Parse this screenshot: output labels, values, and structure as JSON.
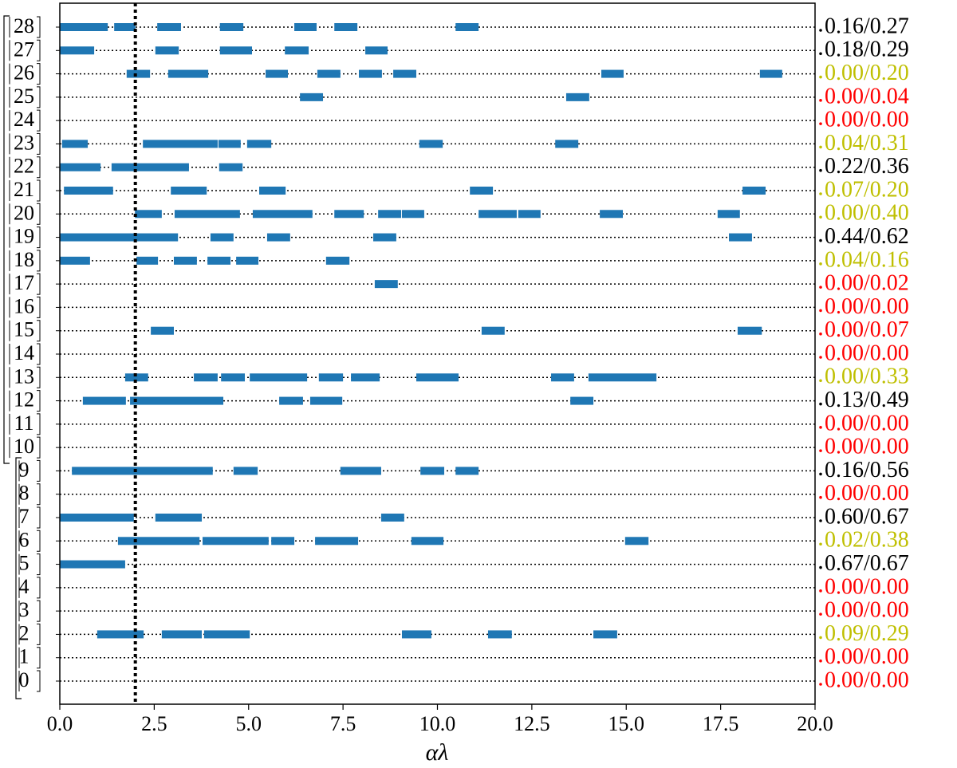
{
  "chart_data": {
    "type": "barcode",
    "xlabel": "αλ",
    "xlim": [
      0,
      20
    ],
    "xticks": [
      {
        "value": 0,
        "label": "0.0"
      },
      {
        "value": 2.5,
        "label": "2.5"
      },
      {
        "value": 5,
        "label": "5.0"
      },
      {
        "value": 7.5,
        "label": "7.5"
      },
      {
        "value": 10,
        "label": "10.0"
      },
      {
        "value": 12.5,
        "label": "12.5"
      },
      {
        "value": 15,
        "label": "15.0"
      },
      {
        "value": 17.5,
        "label": "17.5"
      },
      {
        "value": 20,
        "label": "20.0"
      }
    ],
    "vline": 2,
    "bar_color": "#1f77b4",
    "rows": [
      {
        "label": "0",
        "score": "0.00/0.00",
        "color": "#ff0000",
        "intervals": []
      },
      {
        "label": "1",
        "score": "0.00/0.00",
        "color": "#ff0000",
        "intervals": []
      },
      {
        "label": "2",
        "score": "0.09/0.29",
        "color": "#bfbf00",
        "intervals": [
          [
            0.99,
            2.22
          ],
          [
            2.7,
            3.76
          ],
          [
            3.82,
            5.03
          ],
          [
            9.06,
            9.84
          ],
          [
            11.34,
            11.97
          ],
          [
            14.13,
            14.76
          ]
        ]
      },
      {
        "label": "3",
        "score": "0.00/0.00",
        "color": "#ff0000",
        "intervals": []
      },
      {
        "label": "4",
        "score": "0.00/0.00",
        "color": "#ff0000",
        "intervals": []
      },
      {
        "label": "5",
        "score": "0.67/0.67",
        "color": "#000000",
        "intervals": [
          [
            0,
            1.73
          ]
        ]
      },
      {
        "label": "6",
        "score": "0.02/0.38",
        "color": "#bfbf00",
        "intervals": [
          [
            1.54,
            3.7
          ],
          [
            3.78,
            5.53
          ],
          [
            5.6,
            6.21
          ],
          [
            6.76,
            7.9
          ],
          [
            9.31,
            10.16
          ],
          [
            14.97,
            15.59
          ]
        ]
      },
      {
        "label": "7",
        "score": "0.60/0.67",
        "color": "#000000",
        "intervals": [
          [
            0,
            1.96
          ],
          [
            2.53,
            3.76
          ],
          [
            8.51,
            9.12
          ]
        ]
      },
      {
        "label": "8",
        "score": "0.00/0.00",
        "color": "#ff0000",
        "intervals": []
      },
      {
        "label": "9",
        "score": "0.16/0.56",
        "color": "#000000",
        "intervals": [
          [
            0.32,
            4.05
          ],
          [
            4.6,
            5.24
          ],
          [
            7.43,
            8.51
          ],
          [
            9.55,
            10.18
          ],
          [
            10.48,
            11.09
          ]
        ]
      },
      {
        "label": "10",
        "score": "0.00/0.00",
        "color": "#ff0000",
        "intervals": []
      },
      {
        "label": "11",
        "score": "0.00/0.00",
        "color": "#ff0000",
        "intervals": []
      },
      {
        "label": "12",
        "score": "0.13/0.49",
        "color": "#000000",
        "intervals": [
          [
            0.61,
            1.75
          ],
          [
            1.86,
            4.33
          ],
          [
            5.81,
            6.44
          ],
          [
            6.63,
            7.48
          ],
          [
            13.52,
            14.13
          ]
        ]
      },
      {
        "label": "13",
        "score": "0.00/0.33",
        "color": "#bfbf00",
        "intervals": [
          [
            1.73,
            2.34
          ],
          [
            3.55,
            4.18
          ],
          [
            4.27,
            4.9
          ],
          [
            5.03,
            6.55
          ],
          [
            6.86,
            7.5
          ],
          [
            7.71,
            8.47
          ],
          [
            9.44,
            10.56
          ],
          [
            13.01,
            13.62
          ],
          [
            14.0,
            15.8
          ]
        ]
      },
      {
        "label": "14",
        "score": "0.00/0.00",
        "color": "#ff0000",
        "intervals": []
      },
      {
        "label": "15",
        "score": "0.00/0.07",
        "color": "#ff0000",
        "intervals": [
          [
            2.41,
            3.02
          ],
          [
            11.17,
            11.78
          ],
          [
            17.95,
            18.59
          ]
        ]
      },
      {
        "label": "16",
        "score": "0.00/0.00",
        "color": "#ff0000",
        "intervals": []
      },
      {
        "label": "17",
        "score": "0.00/0.02",
        "color": "#ff0000",
        "intervals": [
          [
            8.34,
            8.95
          ]
        ]
      },
      {
        "label": "18",
        "score": "0.04/0.16",
        "color": "#bfbf00",
        "intervals": [
          [
            0,
            0.8
          ],
          [
            2.03,
            2.6
          ],
          [
            3.02,
            3.63
          ],
          [
            3.91,
            4.52
          ],
          [
            4.67,
            5.26
          ],
          [
            7.05,
            7.67
          ]
        ]
      },
      {
        "label": "19",
        "score": "0.44/0.62",
        "color": "#000000",
        "intervals": [
          [
            0,
            3.13
          ],
          [
            3.99,
            4.6
          ],
          [
            5.49,
            6.1
          ],
          [
            8.3,
            8.91
          ],
          [
            17.72,
            18.33
          ]
        ]
      },
      {
        "label": "20",
        "score": "0.00/0.40",
        "color": "#bfbf00",
        "intervals": [
          [
            1.99,
            2.7
          ],
          [
            3.04,
            4.77
          ],
          [
            5.11,
            6.69
          ],
          [
            7.27,
            8.05
          ],
          [
            8.43,
            9.04
          ],
          [
            9.06,
            9.65
          ],
          [
            11.09,
            12.1
          ],
          [
            12.14,
            12.73
          ],
          [
            14.3,
            14.91
          ],
          [
            17.42,
            18.01
          ]
        ]
      },
      {
        "label": "21",
        "score": "0.07/0.20",
        "color": "#bfbf00",
        "intervals": [
          [
            0.11,
            1.41
          ],
          [
            2.94,
            3.89
          ],
          [
            5.28,
            5.98
          ],
          [
            10.86,
            11.47
          ],
          [
            18.08,
            18.69
          ]
        ]
      },
      {
        "label": "22",
        "score": "0.22/0.36",
        "color": "#000000",
        "intervals": [
          [
            0,
            1.08
          ],
          [
            1.37,
            3.42
          ],
          [
            4.22,
            4.84
          ]
        ]
      },
      {
        "label": "23",
        "score": "0.04/0.31",
        "color": "#bfbf00",
        "intervals": [
          [
            0.06,
            0.74
          ],
          [
            2.2,
            4.18
          ],
          [
            4.2,
            4.79
          ],
          [
            4.96,
            5.6
          ],
          [
            9.52,
            10.14
          ],
          [
            13.12,
            13.73
          ]
        ]
      },
      {
        "label": "24",
        "score": "0.00/0.00",
        "color": "#ff0000",
        "intervals": []
      },
      {
        "label": "25",
        "score": "0.00/0.04",
        "color": "#ff0000",
        "intervals": [
          [
            6.36,
            6.97
          ],
          [
            13.41,
            14.02
          ]
        ]
      },
      {
        "label": "26",
        "score": "0.00/0.20",
        "color": "#bfbf00",
        "intervals": [
          [
            1.77,
            2.39
          ],
          [
            2.87,
            3.93
          ],
          [
            5.45,
            6.04
          ],
          [
            6.82,
            7.43
          ],
          [
            7.92,
            8.53
          ],
          [
            8.83,
            9.44
          ],
          [
            14.34,
            14.93
          ],
          [
            18.54,
            19.13
          ]
        ]
      },
      {
        "label": "27",
        "score": "0.18/0.29",
        "color": "#000000",
        "intervals": [
          [
            0,
            0.91
          ],
          [
            2.53,
            3.15
          ],
          [
            4.24,
            5.09
          ],
          [
            5.96,
            6.59
          ],
          [
            8.09,
            8.68
          ]
        ]
      },
      {
        "label": "28",
        "score": "0.16/0.27",
        "color": "#000000",
        "intervals": [
          [
            0,
            1.27
          ],
          [
            1.44,
            2.0
          ],
          [
            2.58,
            3.21
          ],
          [
            4.24,
            4.86
          ],
          [
            6.21,
            6.8
          ],
          [
            7.27,
            7.88
          ],
          [
            10.48,
            11.09
          ]
        ]
      }
    ]
  }
}
